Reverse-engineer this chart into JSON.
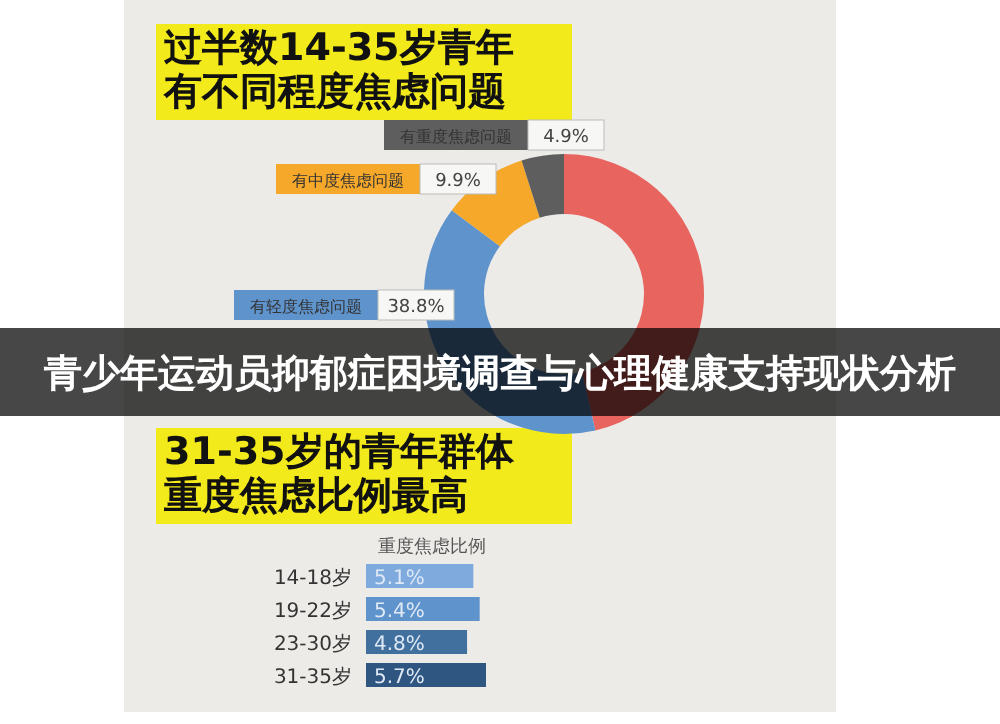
{
  "chart_data": [
    {
      "type": "donut",
      "title": "过半数14-35岁青年有不同程度焦虑问题",
      "categories": [
        null,
        "有轻度焦虑问题",
        "有中度焦虑问题",
        "有重度焦虑问题"
      ],
      "values": [
        46.4,
        38.8,
        9.9,
        4.9
      ],
      "value_labels": [
        null,
        "38.8%",
        "9.9%",
        "4.9%"
      ],
      "colors": [
        "#e8655f",
        "#5f93cc",
        "#f5a82a",
        "#5e5e5e"
      ],
      "annotations": [
        "青少年运动员抑郁症困境调查与心理健康支持现状分析"
      ]
    },
    {
      "type": "bar",
      "orientation": "horizontal",
      "title": "31-35岁的青年群体重度焦虑比例最高",
      "xlabel": "重度焦虑比例",
      "categories": [
        "14-18岁",
        "19-22岁",
        "23-30岁",
        "31-35岁"
      ],
      "values": [
        5.1,
        5.4,
        4.8,
        5.7
      ],
      "value_labels": [
        "5.1%",
        "5.4%",
        "4.8%",
        "5.7%"
      ],
      "colors": [
        "#7eaade",
        "#5f93cc",
        "#41709f",
        "#2f5680"
      ]
    }
  ]
}
